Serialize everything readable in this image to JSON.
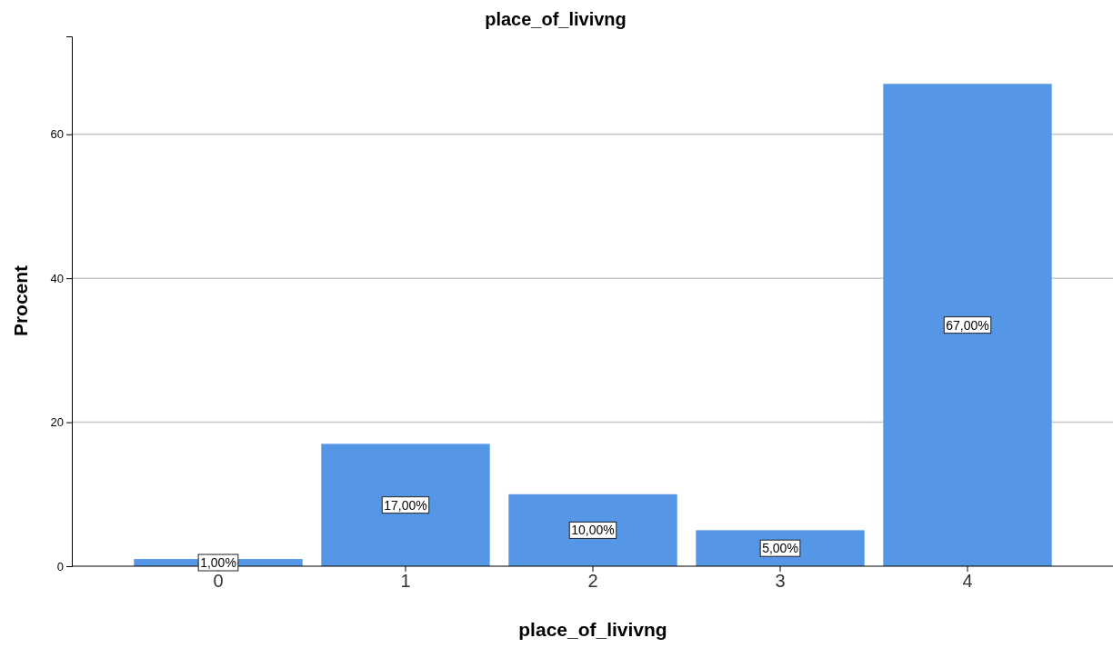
{
  "chart_data": {
    "type": "bar",
    "title": "place_of_livivng",
    "xlabel": "place_of_livivng",
    "ylabel": "Procent",
    "categories": [
      "0",
      "1",
      "2",
      "3",
      "4"
    ],
    "values": [
      1,
      17,
      10,
      5,
      67
    ],
    "value_labels": [
      "1,00%",
      "17,00%",
      "10,00%",
      "5,00%",
      "67,00%"
    ],
    "color": "#5597e6",
    "ylim": [
      0,
      73.6
    ],
    "yticks": [
      0,
      20,
      40,
      60
    ],
    "grid": "y"
  }
}
